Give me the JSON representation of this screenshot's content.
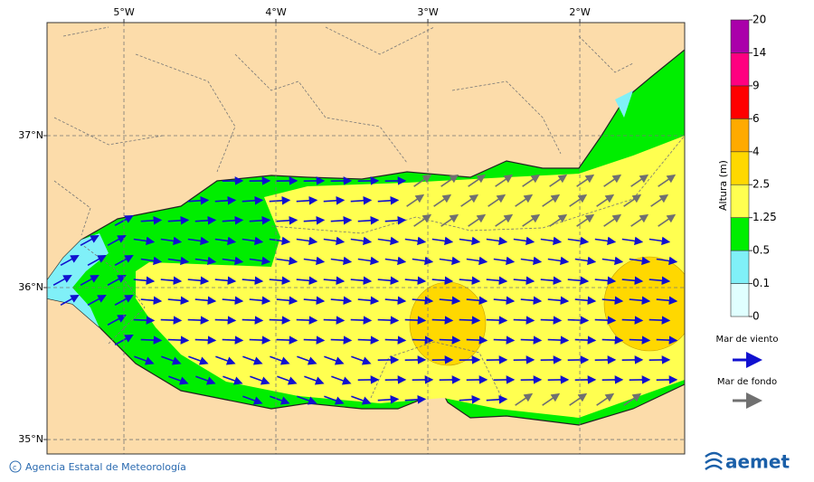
{
  "map": {
    "xlim": [
      -5.506,
      -1.31
    ],
    "ylim": [
      34.905,
      37.744
    ],
    "lon_ticks": [
      {
        "value": -5,
        "label": "5°W"
      },
      {
        "value": -4,
        "label": "4°W"
      },
      {
        "value": -3,
        "label": "3°W"
      },
      {
        "value": -2,
        "label": "2°W"
      }
    ],
    "lat_ticks": [
      {
        "value": 37,
        "label": "37°N"
      },
      {
        "value": 36,
        "label": "36°N"
      },
      {
        "value": 35,
        "label": "35°N"
      }
    ]
  },
  "legend": {
    "title": "Altura (m)",
    "levels": [
      0,
      0.1,
      0.5,
      1.25,
      2.5,
      4,
      6,
      9,
      14,
      20
    ],
    "colors": [
      "#e0ffff",
      "#80f0f8",
      "#00ee00",
      "#ffff50",
      "#ffd800",
      "#ffaa00",
      "#ff0000",
      "#ff0080",
      "#aa00aa"
    ],
    "wind_sea": "Mar de viento",
    "swell": "Mar de fondo"
  },
  "footer": {
    "credit": "Agencia Estatal de Meteorología",
    "logo": "aemet"
  }
}
